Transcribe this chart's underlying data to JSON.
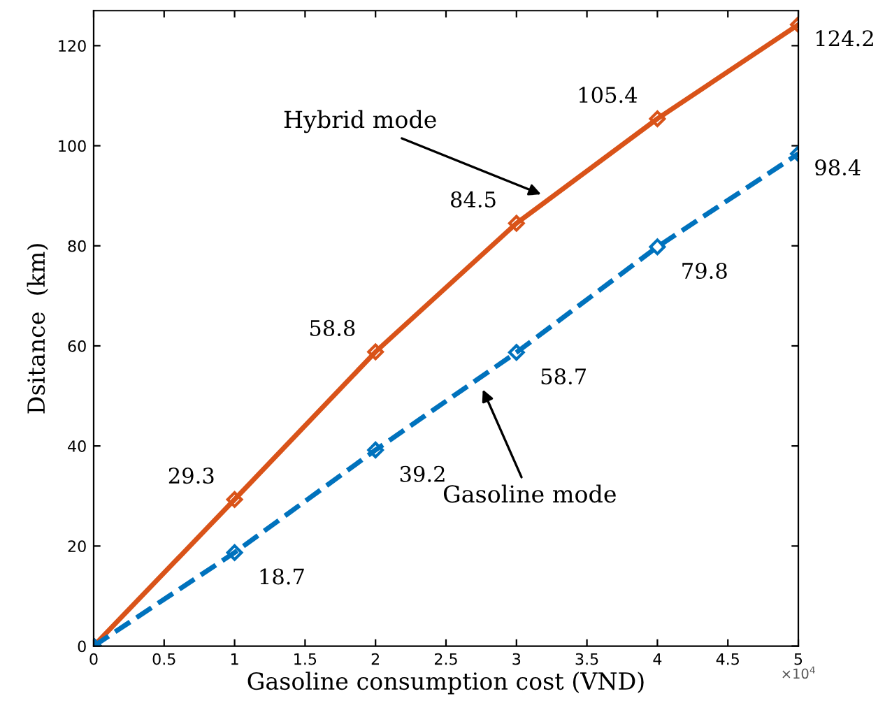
{
  "chart_data": {
    "type": "line",
    "xlabel": "Gasoline consumption cost (VND)",
    "ylabel": "Dsitance  (km)",
    "x": [
      0,
      1,
      2,
      3,
      4,
      5
    ],
    "series": [
      {
        "color": "#d95319",
        "values": [
          0,
          29.3,
          58.8,
          84.5,
          105.4,
          124.2
        ],
        "value_labels": [
          null,
          "29.3",
          "58.8",
          "84.5",
          "105.4",
          "124.2"
        ],
        "line_style": "solid"
      },
      {
        "color": "#0072bd",
        "values": [
          0,
          18.7,
          39.2,
          58.7,
          79.8,
          98.4
        ],
        "value_labels": [
          null,
          "18.7",
          "39.2",
          "58.7",
          "79.8",
          "98.4"
        ],
        "line_style": "dashed"
      }
    ],
    "marker": "diamond",
    "xlim": [
      0,
      5
    ],
    "ylim": [
      0,
      127
    ],
    "xticks": [
      0,
      0.5,
      1,
      1.5,
      2,
      2.5,
      3,
      3.5,
      4,
      4.5,
      5
    ],
    "yticks": [
      0,
      20,
      40,
      60,
      80,
      100,
      120
    ],
    "annotations": [
      {
        "text": "Hybrid mode",
        "x": 3.2,
        "y": 90
      },
      {
        "text": "Gasoline mode",
        "x": 2.75,
        "y": 52
      },
      "×10$^{4}$"
    ],
    "grid": false,
    "legend": false
  }
}
